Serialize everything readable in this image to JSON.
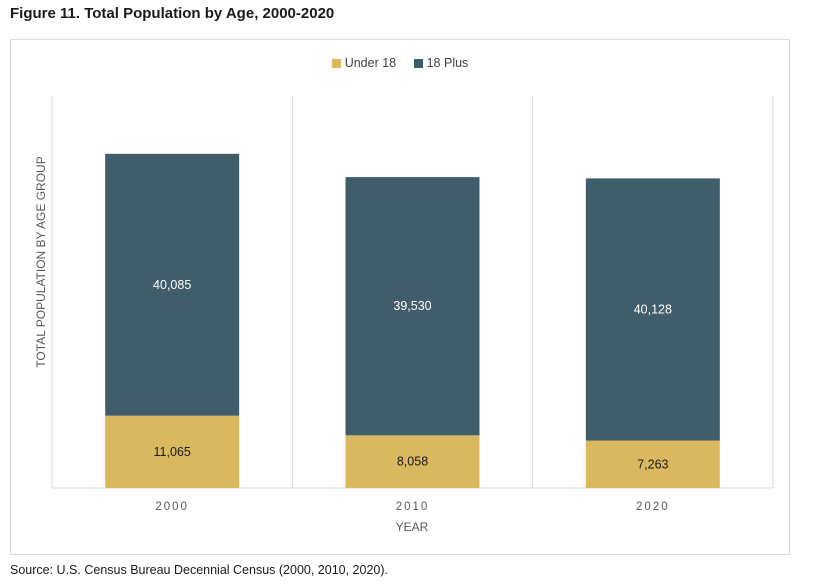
{
  "figure_title": "Figure 11. Total Population by Age, 2000-2020",
  "source": "Source: U.S. Census Bureau Decennial Census (2000, 2010, 2020).",
  "colors": {
    "under_18": "#D9B85F",
    "plus_18": "#3F5E69",
    "grid": "#D9D9D9",
    "axis_text": "#595959"
  },
  "chart_data": {
    "type": "bar",
    "stacked": true,
    "categories": [
      "2000",
      "2010",
      "2020"
    ],
    "series": [
      {
        "name": "Under 18",
        "values": [
          11065,
          8058,
          7263
        ]
      },
      {
        "name": "18 Plus",
        "values": [
          40085,
          39530,
          40128
        ]
      }
    ],
    "data_labels": {
      "Under 18": [
        "11,065",
        "8,058",
        "7,263"
      ],
      "18 Plus": [
        "40,085",
        "39,530",
        "40,128"
      ]
    },
    "xlabel": "YEAR",
    "ylabel": "TOTAL POPULATION BY AGE GROUP",
    "ylim": [
      0,
      60000
    ],
    "legend_position": "top",
    "grid": "vertical category separators"
  }
}
